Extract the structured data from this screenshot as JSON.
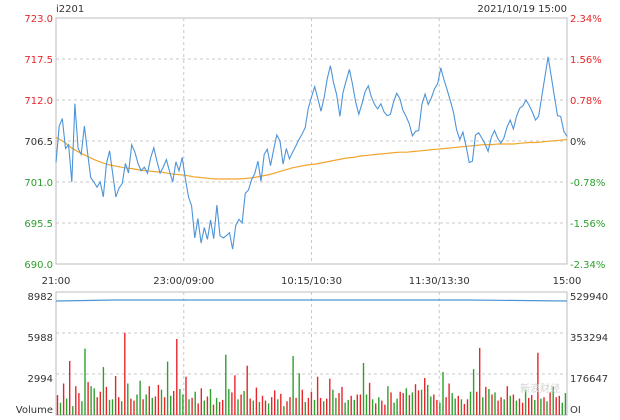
{
  "header": {
    "symbol": "i2201",
    "datetime": "2021/10/19 15:00"
  },
  "colors": {
    "price": "#4d94d9",
    "average": "#f2a52c",
    "up": "#e5262a",
    "down": "#2ea02e",
    "grid": "#c8c8c8",
    "open_interest": "#4d94d9"
  },
  "chart_data": [
    {
      "type": "line",
      "title": "",
      "x_tick_labels": [
        "21:00",
        "23:00/09:00",
        "10:15/10:30",
        "11:30/13:30",
        "15:00"
      ],
      "y_left_ticks": [
        "723.0",
        "717.5",
        "712.0",
        "706.5",
        "701.0",
        "695.5",
        "690.0"
      ],
      "y_right_ticks": [
        "2.34%",
        "1.56%",
        "0.78%",
        "0%",
        "-0.78%",
        "-1.56%",
        "-2.34%"
      ],
      "ylim": [
        690.0,
        723.0
      ],
      "reference_price": 706.5,
      "grid": true,
      "series": [
        {
          "role": "price",
          "values": [
            703.6,
            708.5,
            709.5,
            705.5,
            706.0,
            701.0,
            711.5,
            705.5,
            704.7,
            708.5,
            705.0,
            701.6,
            701.0,
            700.3,
            701.0,
            699.0,
            703.5,
            705.2,
            702.0,
            699.0,
            700.2,
            700.8,
            703.5,
            702.2,
            706.0,
            705.0,
            703.5,
            702.5,
            703.0,
            702.2,
            704.2,
            705.6,
            703.8,
            702.2,
            703.0,
            704.0,
            702.4,
            701.0,
            703.7,
            702.5,
            704.3,
            701.5,
            699.0,
            697.8,
            693.5,
            696.1,
            692.8,
            694.9,
            693.3,
            695.9,
            693.4,
            697.9,
            693.8,
            693.5,
            693.8,
            694.2,
            692.0,
            695.2,
            696.0,
            695.5,
            699.5,
            699.9,
            701.3,
            702.1,
            703.8,
            701.1,
            704.7,
            705.4,
            703.2,
            705.3,
            707.3,
            706.5,
            703.4,
            705.5,
            704.1,
            705.0,
            705.8,
            706.7,
            707.4,
            708.3,
            710.9,
            712.4,
            713.8,
            712.2,
            710.5,
            712.3,
            714.9,
            716.6,
            714.3,
            712.7,
            709.8,
            713.0,
            714.6,
            716.1,
            714.1,
            711.7,
            710.1,
            711.5,
            713.1,
            713.9,
            712.4,
            711.4,
            710.8,
            711.5,
            710.4,
            709.9,
            710.1,
            711.7,
            712.9,
            712.2,
            710.6,
            709.8,
            708.8,
            707.2,
            707.8,
            707.9,
            711.4,
            712.8,
            711.4,
            712.3,
            713.5,
            714.2,
            716.3,
            714.7,
            713.4,
            711.9,
            710.4,
            708.0,
            706.7,
            707.7,
            705.8,
            703.6,
            703.8,
            707.3,
            707.6,
            706.9,
            706.1,
            705.1,
            707.0,
            707.9,
            706.9,
            706.2,
            706.9,
            708.4,
            709.3,
            708.1,
            709.8,
            710.9,
            711.2,
            712.0,
            711.3,
            710.4,
            709.3,
            709.8,
            712.5,
            715.1,
            717.8,
            715.2,
            712.5,
            709.9,
            709.8,
            707.8,
            707.1
          ],
          "low_value_min": 691.5,
          "high_value_max": 717.9
        },
        {
          "role": "average",
          "values": [
            707.0,
            706.4,
            705.6,
            705.0,
            704.5,
            704.0,
            703.6,
            703.3,
            703.1,
            702.9,
            702.8,
            702.6,
            702.5,
            702.4,
            702.3,
            702.1,
            702.0,
            701.9,
            701.7,
            701.6,
            701.5,
            701.4,
            701.4,
            701.4,
            701.4,
            701.5,
            701.6,
            701.8,
            702.0,
            702.3,
            702.6,
            702.9,
            703.1,
            703.3,
            703.4,
            703.6,
            703.8,
            704.0,
            704.2,
            704.3,
            704.5,
            704.6,
            704.7,
            704.8,
            704.9,
            705.0,
            705.0,
            705.1,
            705.2,
            705.3,
            705.4,
            705.5,
            705.6,
            705.7,
            705.8,
            705.9,
            706.0,
            706.0,
            706.1,
            706.1,
            706.1,
            706.2,
            706.3,
            706.3,
            706.4,
            706.5,
            706.6,
            706.7
          ]
        }
      ]
    },
    {
      "type": "bar",
      "title": "",
      "ylabel": "Volume",
      "y_left_ticks": [
        "8982",
        "5988",
        "2994"
      ],
      "y_right_ticks": [
        "529940",
        "353294",
        "176647"
      ],
      "right_axis_label": "OI",
      "ylim": [
        0,
        8982
      ],
      "open_interest_level": 529940,
      "volume_values": [
        1450,
        900,
        2300,
        1200,
        3950,
        650,
        2100,
        1600,
        1000,
        4850,
        2400,
        2100,
        1950,
        1300,
        1700,
        3500,
        2050,
        1100,
        1150,
        2850,
        1300,
        1000,
        6000,
        2300,
        1200,
        1050,
        1500,
        2500,
        1150,
        1500,
        2100,
        1250,
        1350,
        2200,
        1850,
        1300,
        3900,
        1400,
        1750,
        5550,
        1900,
        1500,
        2800,
        1150,
        1250,
        1700,
        850,
        1950,
        1050,
        1350,
        1900,
        750,
        1250,
        950,
        1100,
        4400,
        1900,
        1650,
        2900,
        1150,
        1500,
        1750,
        3600,
        1200,
        1050,
        2000,
        950,
        1400,
        1050,
        850,
        1300,
        1800,
        1150,
        1550,
        650,
        1000,
        1300,
        4300,
        1250,
        3050,
        1850,
        950,
        1250,
        1700,
        1100,
        2800,
        1250,
        1000,
        1200,
        2650,
        1850,
        1250,
        1600,
        2050,
        900,
        1100,
        1400,
        1100,
        1500,
        1500,
        3800,
        1500,
        2350,
        1150,
        850,
        1300,
        1050,
        750,
        2100,
        1650,
        900,
        1200,
        1700,
        1600,
        1950,
        1450,
        1650,
        2250,
        1800,
        1850,
        2700,
        2200,
        1350,
        1500,
        1100,
        900,
        3150,
        1300,
        2300,
        1600,
        1200,
        1400,
        1150,
        800,
        1150,
        1700,
        3350,
        1700,
        4900,
        1300,
        2050,
        1900,
        1500,
        1650,
        1050,
        1300,
        1150,
        2100,
        1400,
        1500,
        1050,
        1200,
        900,
        1850,
        1250,
        1450,
        1100,
        4550,
        1200,
        1300,
        1000,
        1650,
        2100,
        1300,
        1400,
        900,
        1600
      ],
      "volume_up": [
        true,
        false,
        true,
        false,
        true,
        false,
        true,
        true,
        false,
        false,
        true,
        false,
        false,
        true,
        true,
        false,
        true,
        false,
        false,
        true,
        true,
        false,
        true,
        false,
        true,
        true,
        false,
        false,
        true,
        false,
        true,
        false,
        true,
        true,
        false,
        true,
        false,
        false,
        true,
        true,
        false,
        false,
        true,
        false,
        true,
        false,
        true,
        true,
        false,
        true,
        false,
        true,
        false,
        true,
        true,
        false,
        false,
        true,
        true,
        false,
        true,
        false,
        true,
        true,
        false,
        true,
        false,
        true,
        true,
        false,
        true,
        true,
        false,
        true,
        false,
        true,
        true,
        false,
        true,
        false,
        true,
        false,
        true,
        true,
        false,
        true,
        true,
        false,
        true,
        true,
        false,
        false,
        true,
        true,
        false,
        false,
        true,
        false,
        true,
        true,
        false,
        false,
        true,
        false,
        true,
        false,
        true,
        true,
        false,
        true,
        false,
        false,
        true,
        true,
        false,
        true,
        false,
        true,
        true,
        false,
        true,
        false,
        false,
        true,
        true,
        false,
        false,
        true,
        true,
        false,
        false,
        true,
        false,
        true,
        true,
        false,
        false,
        true,
        true,
        false,
        true,
        false,
        true,
        false,
        true,
        true,
        false,
        true,
        false,
        true,
        false,
        true,
        true,
        false,
        true,
        true,
        false,
        true,
        false,
        true,
        false,
        true,
        false,
        true,
        true
      ]
    }
  ],
  "watermark": "新浪财经"
}
